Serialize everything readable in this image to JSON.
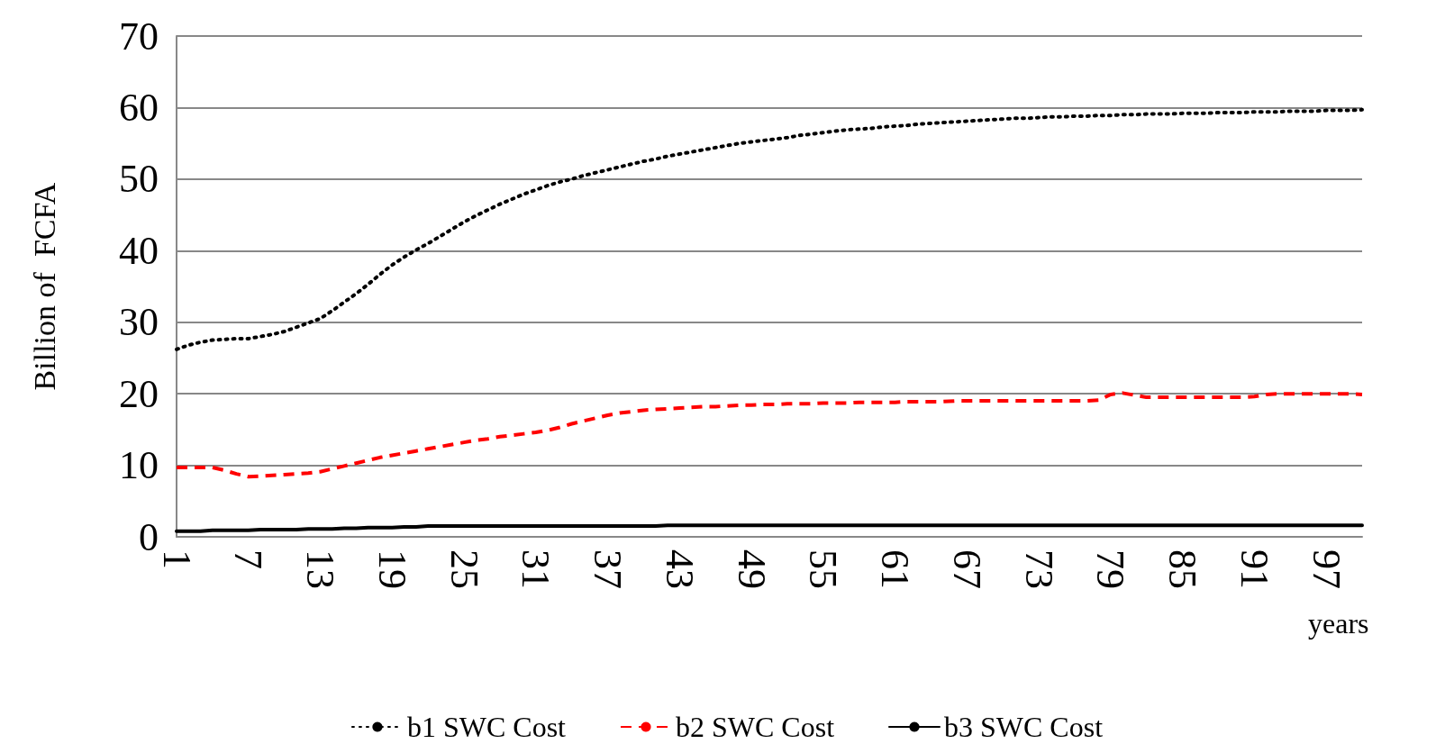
{
  "chart_data": {
    "type": "line",
    "ylabel": "Billion of  FCFA",
    "xlabel": "years",
    "categories": [
      "1",
      null,
      null,
      null,
      null,
      null,
      "7",
      null,
      null,
      null,
      null,
      null,
      "13",
      null,
      null,
      null,
      null,
      null,
      "19",
      null,
      null,
      null,
      null,
      null,
      "25",
      null,
      null,
      null,
      null,
      null,
      "31",
      null,
      null,
      null,
      null,
      null,
      "37",
      null,
      null,
      null,
      null,
      null,
      "43",
      null,
      null,
      null,
      null,
      null,
      "49",
      null,
      null,
      null,
      null,
      null,
      "55",
      null,
      null,
      null,
      null,
      null,
      "61",
      null,
      null,
      null,
      null,
      null,
      "67",
      null,
      null,
      null,
      null,
      null,
      "73",
      null,
      null,
      null,
      null,
      null,
      "79",
      null,
      null,
      null,
      null,
      null,
      "85",
      null,
      null,
      null,
      null,
      null,
      "91",
      null,
      null,
      null,
      null,
      null,
      "97",
      null,
      null,
      null
    ],
    "series": [
      {
        "name": "b1 SWC Cost",
        "color": "#000000",
        "line_style": "dotted",
        "values": [
          26.2,
          26.8,
          27.2,
          27.5,
          27.6,
          27.7,
          27.7,
          28.0,
          28.3,
          28.7,
          29.3,
          29.9,
          30.5,
          31.6,
          32.8,
          34.0,
          35.3,
          36.7,
          38.0,
          39.1,
          40.1,
          41.0,
          42.0,
          43.0,
          44.0,
          44.9,
          45.7,
          46.5,
          47.2,
          47.9,
          48.5,
          49.1,
          49.6,
          50.0,
          50.5,
          50.9,
          51.3,
          51.7,
          52.1,
          52.5,
          52.8,
          53.2,
          53.5,
          53.8,
          54.1,
          54.4,
          54.7,
          55.0,
          55.2,
          55.4,
          55.6,
          55.8,
          56.1,
          56.3,
          56.5,
          56.7,
          56.9,
          57.0,
          57.1,
          57.3,
          57.4,
          57.5,
          57.7,
          57.8,
          57.9,
          58.0,
          58.1,
          58.2,
          58.3,
          58.4,
          58.5,
          58.5,
          58.6,
          58.7,
          58.7,
          58.8,
          58.8,
          58.9,
          58.9,
          59.0,
          59.0,
          59.1,
          59.1,
          59.1,
          59.2,
          59.2,
          59.2,
          59.3,
          59.3,
          59.3,
          59.4,
          59.4,
          59.4,
          59.5,
          59.5,
          59.5,
          59.6,
          59.6,
          59.6,
          59.7
        ]
      },
      {
        "name": "b2 SWC Cost",
        "color": "#ff0000",
        "line_style": "dashed",
        "values": [
          9.7,
          9.7,
          9.7,
          9.7,
          9.3,
          8.8,
          8.4,
          8.5,
          8.6,
          8.7,
          8.8,
          8.9,
          9.1,
          9.5,
          9.9,
          10.3,
          10.7,
          11.1,
          11.4,
          11.7,
          12.0,
          12.3,
          12.6,
          12.9,
          13.2,
          13.5,
          13.7,
          14.0,
          14.2,
          14.4,
          14.6,
          14.9,
          15.3,
          15.8,
          16.2,
          16.6,
          17.0,
          17.3,
          17.5,
          17.7,
          17.8,
          17.9,
          18.0,
          18.1,
          18.2,
          18.2,
          18.3,
          18.4,
          18.4,
          18.5,
          18.5,
          18.6,
          18.6,
          18.6,
          18.7,
          18.7,
          18.7,
          18.8,
          18.8,
          18.8,
          18.8,
          18.9,
          18.9,
          18.9,
          18.9,
          19.0,
          19.0,
          19.0,
          19.0,
          19.0,
          19.0,
          19.0,
          19.0,
          19.0,
          19.0,
          19.0,
          19.0,
          19.1,
          19.9,
          20.1,
          19.8,
          19.5,
          19.5,
          19.5,
          19.5,
          19.5,
          19.5,
          19.5,
          19.5,
          19.5,
          19.6,
          19.9,
          20.0,
          20.0,
          20.0,
          20.0,
          20.0,
          20.0,
          20.0,
          19.9
        ]
      },
      {
        "name": "b3 SWC Cost",
        "color": "#000000",
        "line_style": "solid",
        "values": [
          0.8,
          0.8,
          0.8,
          0.9,
          0.9,
          0.9,
          0.9,
          1.0,
          1.0,
          1.0,
          1.0,
          1.1,
          1.1,
          1.1,
          1.2,
          1.2,
          1.3,
          1.3,
          1.3,
          1.4,
          1.4,
          1.5,
          1.5,
          1.5,
          1.5,
          1.5,
          1.5,
          1.5,
          1.5,
          1.5,
          1.5,
          1.5,
          1.5,
          1.5,
          1.5,
          1.5,
          1.5,
          1.5,
          1.5,
          1.5,
          1.5,
          1.6,
          1.6,
          1.6,
          1.6,
          1.6,
          1.6,
          1.6,
          1.6,
          1.6,
          1.6,
          1.6,
          1.6,
          1.6,
          1.6,
          1.6,
          1.6,
          1.6,
          1.6,
          1.6,
          1.6,
          1.6,
          1.6,
          1.6,
          1.6,
          1.6,
          1.6,
          1.6,
          1.6,
          1.6,
          1.6,
          1.6,
          1.6,
          1.6,
          1.6,
          1.6,
          1.6,
          1.6,
          1.6,
          1.6,
          1.6,
          1.6,
          1.6,
          1.6,
          1.6,
          1.6,
          1.6,
          1.6,
          1.6,
          1.6,
          1.6,
          1.6,
          1.6,
          1.6,
          1.6,
          1.6,
          1.6,
          1.6,
          1.6,
          1.6
        ]
      }
    ],
    "ylim": [
      0,
      70
    ],
    "yticks": [
      0,
      10,
      20,
      30,
      40,
      50,
      60,
      70
    ],
    "grid": "y",
    "legend": "bottom",
    "marker": "none"
  }
}
